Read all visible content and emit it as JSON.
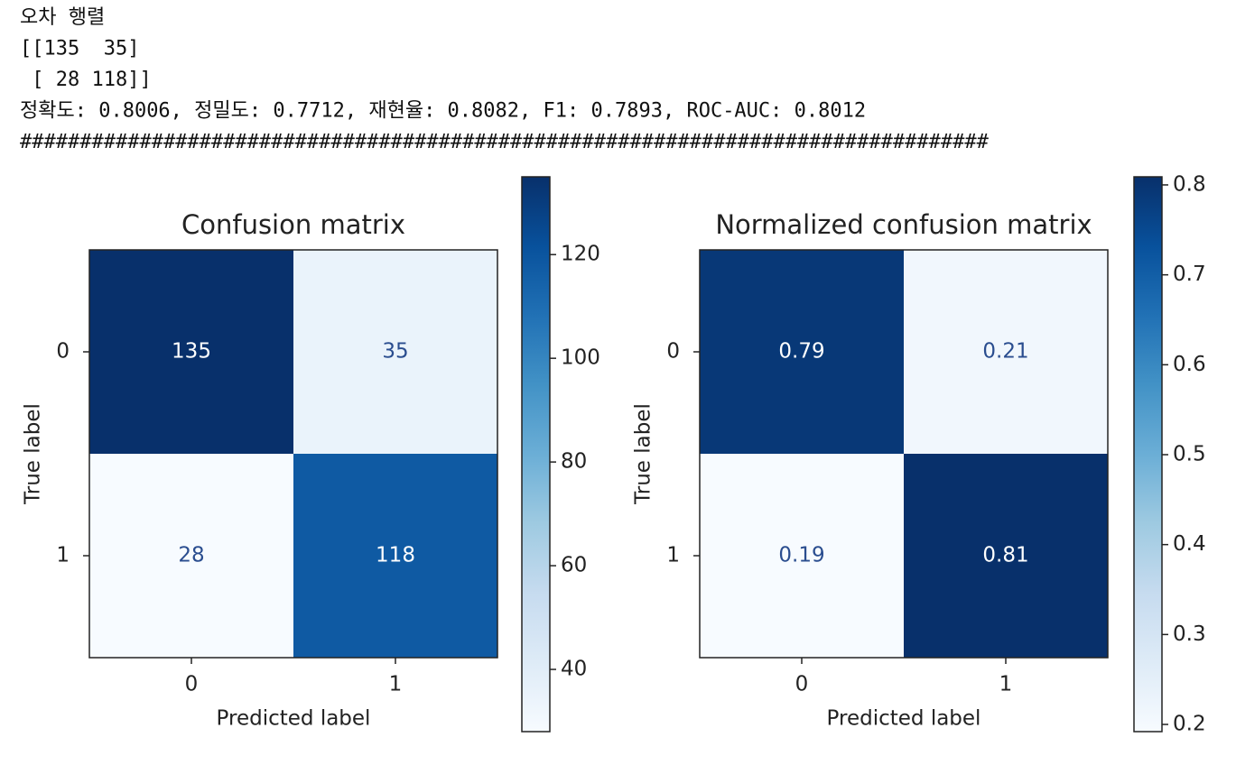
{
  "console": {
    "lines": [
      "오차 행렬",
      "[[135  35]",
      " [ 28 118]]",
      "정확도: 0.8006, 정밀도: 0.7712, 재현율: 0.8082, F1: 0.7893, ROC-AUC: 0.8012",
      "#################################################################################"
    ]
  },
  "chart_data": [
    {
      "type": "heatmap",
      "title": "Confusion matrix",
      "xlabel": "Predicted label",
      "ylabel": "True label",
      "x_categories": [
        "0",
        "1"
      ],
      "y_categories": [
        "0",
        "1"
      ],
      "values": [
        [
          135,
          35
        ],
        [
          28,
          118
        ]
      ],
      "clim": [
        28,
        135
      ],
      "colorbar_ticks": [
        40,
        60,
        80,
        100,
        120
      ],
      "cmap": [
        "#f7fbff",
        "#deebf7",
        "#c6dbef",
        "#9ecae1",
        "#6baed6",
        "#4292c6",
        "#2171b5",
        "#08519c",
        "#08306b"
      ]
    },
    {
      "type": "heatmap",
      "title": "Normalized confusion matrix",
      "xlabel": "Predicted label",
      "ylabel": "True label",
      "x_categories": [
        "0",
        "1"
      ],
      "y_categories": [
        "0",
        "1"
      ],
      "values": [
        [
          0.79,
          0.21
        ],
        [
          0.19,
          0.81
        ]
      ],
      "clim": [
        0.192,
        0.809
      ],
      "colorbar_ticks": [
        0.2,
        0.3,
        0.4,
        0.5,
        0.6,
        0.7,
        0.8
      ],
      "cmap": [
        "#f7fbff",
        "#deebf7",
        "#c6dbef",
        "#9ecae1",
        "#6baed6",
        "#4292c6",
        "#2171b5",
        "#08519c",
        "#08306b"
      ]
    }
  ]
}
